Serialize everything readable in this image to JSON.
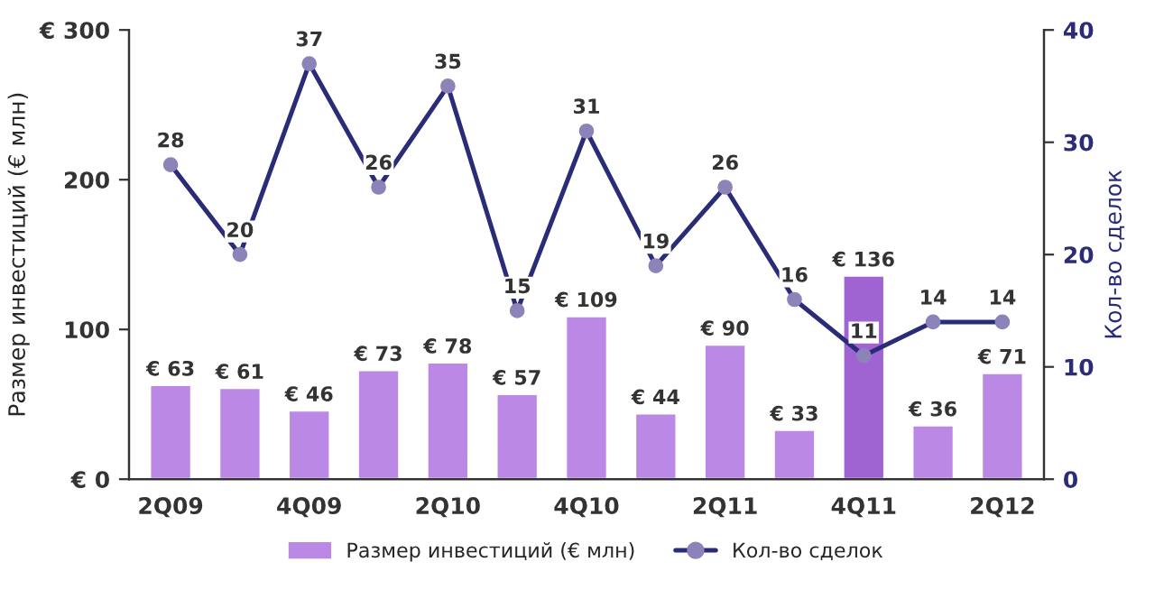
{
  "chart_data": {
    "type": "bar",
    "categories": [
      "2Q09",
      null,
      "4Q09",
      null,
      "2Q10",
      null,
      "4Q10",
      null,
      "2Q11",
      null,
      "4Q11",
      null,
      "2Q12"
    ],
    "ylabel": "Размер инвестиций (€ млн)",
    "y2label": "Кол-во сделок",
    "ylim": [
      0,
      300
    ],
    "yticks": [
      {
        "value": 0,
        "label": "€ 0"
      },
      100,
      200,
      {
        "value": 300,
        "label": "€ 300"
      }
    ],
    "y2lim": [
      0,
      40
    ],
    "y2ticks": [
      0,
      10,
      20,
      30,
      40
    ],
    "series": [
      {
        "name": "Размер инвестиций (€ млн)",
        "color": "#bb88e6",
        "colors": [
          "#bb88e6",
          "#bb88e6",
          "#bb88e6",
          "#bb88e6",
          "#bb88e6",
          "#bb88e6",
          "#bb88e6",
          "#bb88e6",
          "#bb88e6",
          "#bb88e6",
          "#a064d2",
          "#bb88e6",
          "#bb88e6"
        ],
        "values": [
          63,
          61,
          46,
          73,
          78,
          57,
          109,
          44,
          90,
          33,
          136,
          36,
          71
        ],
        "value_labels": [
          "€ 63",
          "€ 61",
          "€ 46",
          "€ 73",
          "€ 78",
          "€ 57",
          "€ 109",
          "€ 44",
          "€ 90",
          "€ 33",
          "€ 136",
          "€ 36",
          "€ 71"
        ]
      },
      {
        "name": "Кол-во сделок",
        "type": "line",
        "axis": "y2",
        "color": "#2a2c78",
        "values": [
          28,
          20,
          37,
          26,
          35,
          15,
          31,
          19,
          26,
          16,
          11,
          14,
          14
        ]
      }
    ],
    "data_labels": true,
    "marker": "circle",
    "line_style": "solid",
    "grid": false,
    "legend": "bottom"
  }
}
